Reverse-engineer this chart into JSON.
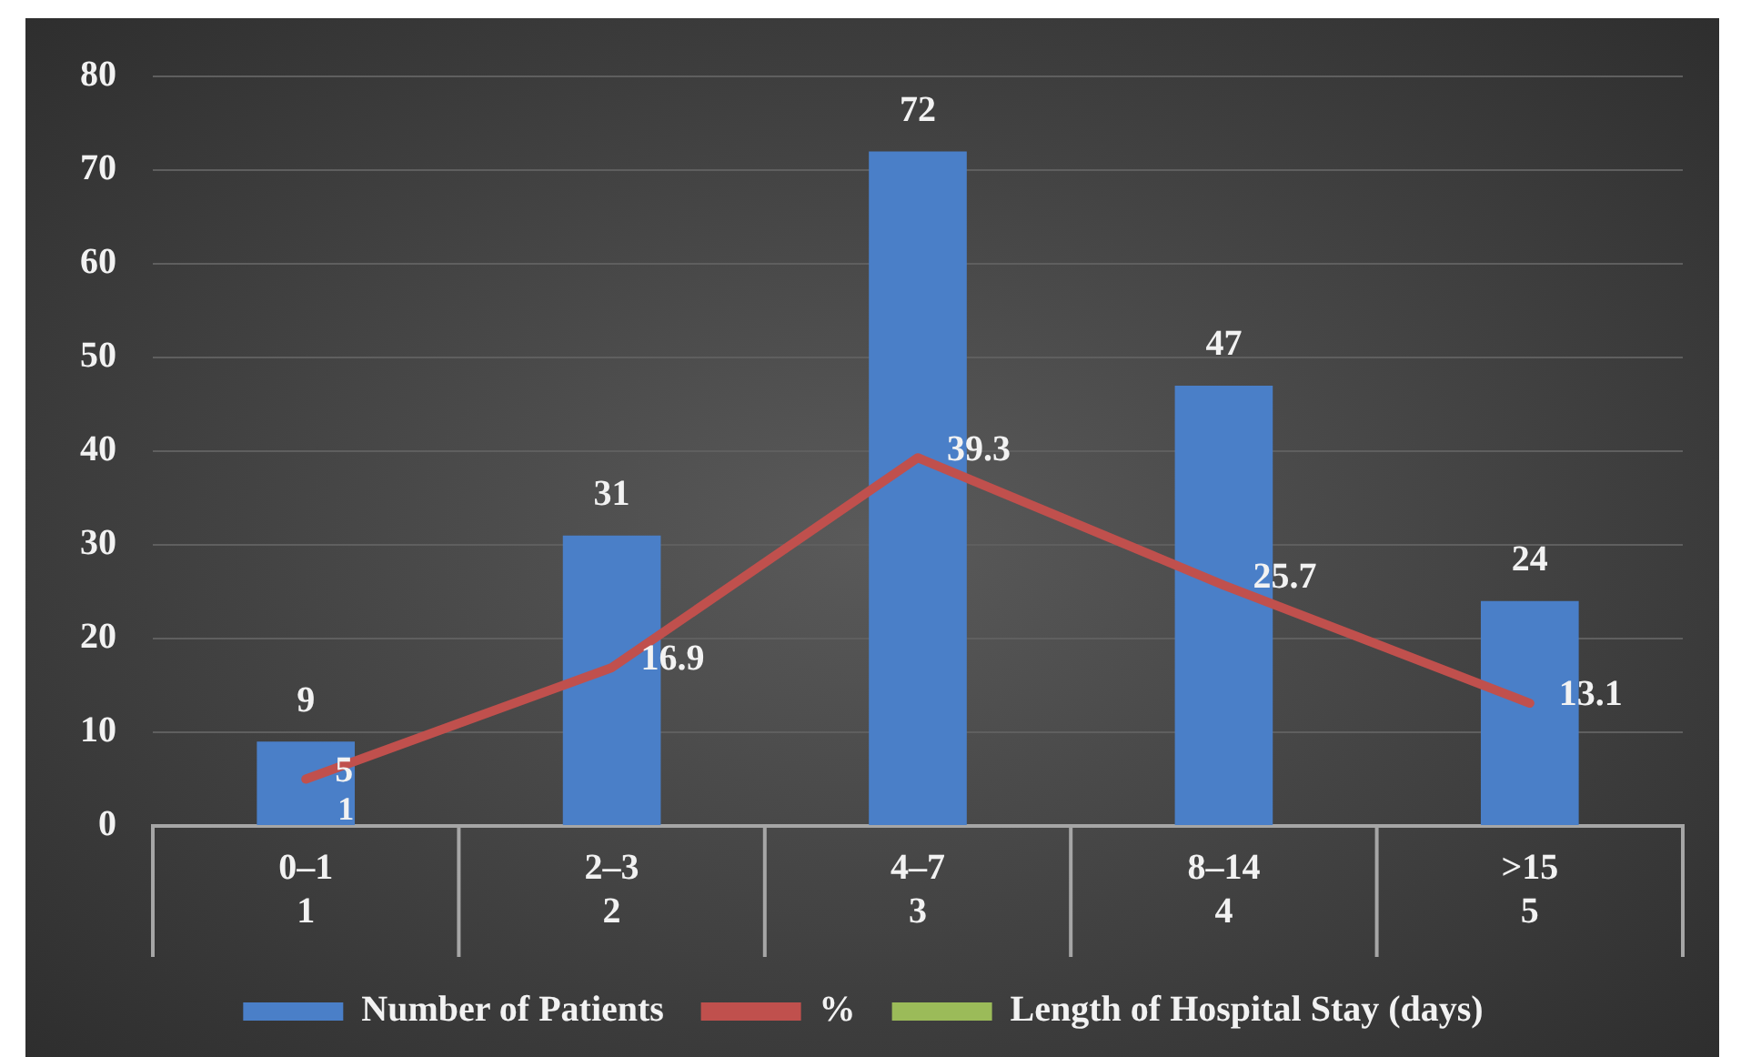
{
  "chart_data": {
    "type": "bar",
    "categories": [
      "0–1\n1",
      "2–3\n2",
      "4–7\n3",
      "8–14\n4",
      ">15\n5"
    ],
    "series": [
      {
        "name": "Number of Patients",
        "color": "#4a7fc8",
        "values": [
          9,
          31,
          72,
          47,
          24
        ],
        "value_labels": [
          "9",
          "31",
          "72",
          "47",
          "24"
        ]
      },
      {
        "name": "%",
        "type": "line",
        "color": "#c0504d",
        "values": [
          5,
          16.9,
          39.3,
          25.7,
          13.1
        ],
        "value_labels": [
          "5",
          "16.9",
          "39.3",
          "25.7",
          "13.1"
        ]
      },
      {
        "name": "Length of Hospital Stay (days)",
        "type": "line",
        "color": "#9bbb59",
        "values": [
          null,
          null,
          null,
          null,
          null
        ]
      }
    ],
    "annotations": [
      {
        "text": "1",
        "x": "0–1\n1",
        "y": 0
      }
    ],
    "ylim": [
      0,
      80
    ],
    "yticks": [
      0,
      10,
      20,
      30,
      40,
      50,
      60,
      70,
      80
    ],
    "grid": "y",
    "legend": "bottom",
    "marker": "none"
  }
}
